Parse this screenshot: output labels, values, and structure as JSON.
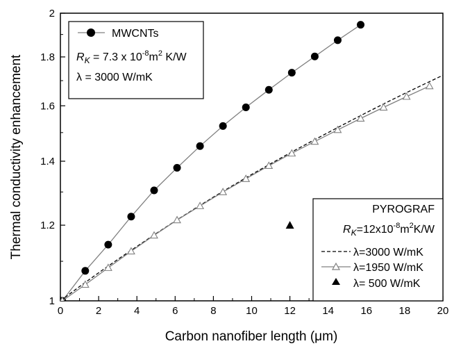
{
  "chart_data": {
    "type": "line",
    "xlabel": "Carbon nanofiber length (μm)",
    "ylabel": "Thermal conductivity enhancement",
    "xlim": [
      0,
      20
    ],
    "ylim": [
      1,
      2
    ],
    "y_scale": "log",
    "x_ticks": [
      "0",
      "2",
      "4",
      "6",
      "8",
      "10",
      "12",
      "14",
      "16",
      "18",
      "20"
    ],
    "y_ticks": [
      "1",
      "1.2",
      "1.4",
      "1.6",
      "1.8",
      "2"
    ],
    "grid": false,
    "series": [
      {
        "name": "MWCNTs",
        "marker": "filled-circle",
        "line": "solid",
        "color": "#808080",
        "x": [
          0.1,
          1.3,
          2.5,
          3.7,
          4.9,
          6.1,
          7.3,
          8.5,
          9.7,
          10.9,
          12.1,
          13.3,
          14.5,
          15.7
        ],
        "y": [
          1.0,
          1.075,
          1.145,
          1.225,
          1.305,
          1.378,
          1.452,
          1.524,
          1.594,
          1.663,
          1.733,
          1.802,
          1.874,
          1.945
        ]
      },
      {
        "name": "λ=3000 W/mK",
        "marker": "none",
        "line": "dashed",
        "color": "#000000",
        "x": [
          0,
          1,
          2,
          3,
          4,
          5,
          6,
          7,
          8,
          9,
          10,
          11,
          12,
          13,
          14,
          15,
          16,
          17,
          18,
          19,
          20
        ],
        "y": [
          1.0,
          1.035,
          1.07,
          1.105,
          1.14,
          1.176,
          1.212,
          1.248,
          1.284,
          1.32,
          1.356,
          1.392,
          1.428,
          1.464,
          1.5,
          1.537,
          1.574,
          1.611,
          1.648,
          1.685,
          1.722
        ]
      },
      {
        "name": "λ=1950 W/mK",
        "marker": "open-triangle",
        "line": "solid",
        "color": "#808080",
        "x": [
          0.1,
          1.3,
          2.5,
          3.7,
          4.9,
          6.1,
          7.3,
          8.5,
          9.7,
          10.9,
          12.1,
          13.3,
          14.5,
          15.7,
          16.9,
          18.1,
          19.3
        ],
        "y": [
          1.0,
          1.04,
          1.083,
          1.127,
          1.171,
          1.215,
          1.257,
          1.3,
          1.342,
          1.385,
          1.427,
          1.468,
          1.51,
          1.552,
          1.594,
          1.636,
          1.678
        ]
      },
      {
        "name": "λ= 500  W/mK",
        "marker": "filled-triangle",
        "line": "none",
        "color": "#000000",
        "x": [
          12.0
        ],
        "y": [
          1.2
        ]
      }
    ],
    "legend_top": {
      "placement": "top-left",
      "entry": "MWCNTs",
      "rk_symbol": "R",
      "rk_sub": "K",
      "rk_value": " = 7.3 x 10",
      "rk_exp": "-8",
      "rk_unit": "m",
      "rk_unit_exp": "2",
      "rk_unit_tail": " K/W",
      "lambda_text": "λ = 3000 W/mK"
    },
    "legend_bottom": {
      "placement": "bottom-right",
      "title": "PYROGRAF",
      "rk_symbol": "R",
      "rk_sub": "K",
      "rk_value": "=12x10",
      "rk_exp": "-8",
      "rk_unit": "m",
      "rk_unit_exp": "2",
      "rk_unit_tail": "K/W",
      "entries": [
        "λ=3000 W/mK",
        "λ=1950 W/mK",
        "λ= 500  W/mK"
      ]
    }
  }
}
